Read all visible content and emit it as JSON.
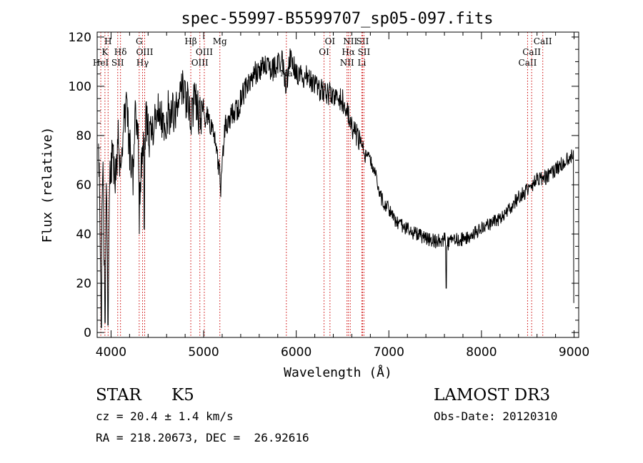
{
  "chart_data": {
    "type": "line",
    "title": "spec-55997-B5599707_sp05-097.fits",
    "xlabel": "Wavelength (Å)",
    "ylabel": "Flux (relative)",
    "xlim": [
      3850,
      9050
    ],
    "ylim": [
      -2,
      122
    ],
    "xticks": [
      4000,
      5000,
      6000,
      7000,
      8000,
      9000
    ],
    "yticks": [
      0,
      20,
      40,
      60,
      80,
      100,
      120
    ],
    "grid": false,
    "spectrum_color": "#000000",
    "line_marker_color": "#cc0000",
    "spectrum_anchors": [
      {
        "x": 3870,
        "y": 68
      },
      {
        "x": 3890,
        "y": 22
      },
      {
        "x": 3910,
        "y": 70
      },
      {
        "x": 3935,
        "y": 8
      },
      {
        "x": 3950,
        "y": 62
      },
      {
        "x": 3968,
        "y": 8
      },
      {
        "x": 3985,
        "y": 60
      },
      {
        "x": 4010,
        "y": 72
      },
      {
        "x": 4050,
        "y": 62
      },
      {
        "x": 4075,
        "y": 80
      },
      {
        "x": 4102,
        "y": 60
      },
      {
        "x": 4130,
        "y": 85
      },
      {
        "x": 4170,
        "y": 92
      },
      {
        "x": 4200,
        "y": 75
      },
      {
        "x": 4240,
        "y": 62
      },
      {
        "x": 4260,
        "y": 88
      },
      {
        "x": 4290,
        "y": 86
      },
      {
        "x": 4305,
        "y": 55
      },
      {
        "x": 4340,
        "y": 72
      },
      {
        "x": 4380,
        "y": 86
      },
      {
        "x": 4420,
        "y": 78
      },
      {
        "x": 4470,
        "y": 85
      },
      {
        "x": 4520,
        "y": 92
      },
      {
        "x": 4570,
        "y": 80
      },
      {
        "x": 4620,
        "y": 90
      },
      {
        "x": 4660,
        "y": 88
      },
      {
        "x": 4700,
        "y": 92
      },
      {
        "x": 4740,
        "y": 102
      },
      {
        "x": 4780,
        "y": 98
      },
      {
        "x": 4820,
        "y": 94
      },
      {
        "x": 4861,
        "y": 88
      },
      {
        "x": 4900,
        "y": 95
      },
      {
        "x": 4940,
        "y": 90
      },
      {
        "x": 4980,
        "y": 86
      },
      {
        "x": 5050,
        "y": 88
      },
      {
        "x": 5120,
        "y": 80
      },
      {
        "x": 5172,
        "y": 65
      },
      {
        "x": 5185,
        "y": 62
      },
      {
        "x": 5230,
        "y": 84
      },
      {
        "x": 5300,
        "y": 88
      },
      {
        "x": 5380,
        "y": 92
      },
      {
        "x": 5460,
        "y": 100
      },
      {
        "x": 5550,
        "y": 105
      },
      {
        "x": 5650,
        "y": 108
      },
      {
        "x": 5750,
        "y": 107
      },
      {
        "x": 5850,
        "y": 110
      },
      {
        "x": 5890,
        "y": 100
      },
      {
        "x": 5930,
        "y": 112
      },
      {
        "x": 6000,
        "y": 105
      },
      {
        "x": 6100,
        "y": 104
      },
      {
        "x": 6200,
        "y": 100
      },
      {
        "x": 6280,
        "y": 98
      },
      {
        "x": 6350,
        "y": 97
      },
      {
        "x": 6420,
        "y": 96
      },
      {
        "x": 6500,
        "y": 94
      },
      {
        "x": 6540,
        "y": 90
      },
      {
        "x": 6563,
        "y": 88
      },
      {
        "x": 6600,
        "y": 84
      },
      {
        "x": 6650,
        "y": 80
      },
      {
        "x": 6700,
        "y": 78
      },
      {
        "x": 6740,
        "y": 72
      },
      {
        "x": 6800,
        "y": 70
      },
      {
        "x": 6850,
        "y": 66
      },
      {
        "x": 6900,
        "y": 56
      },
      {
        "x": 6950,
        "y": 52
      },
      {
        "x": 7000,
        "y": 50
      },
      {
        "x": 7050,
        "y": 46
      },
      {
        "x": 7100,
        "y": 44
      },
      {
        "x": 7200,
        "y": 42
      },
      {
        "x": 7300,
        "y": 40
      },
      {
        "x": 7400,
        "y": 38
      },
      {
        "x": 7500,
        "y": 37
      },
      {
        "x": 7600,
        "y": 38
      },
      {
        "x": 7630,
        "y": 36
      },
      {
        "x": 7700,
        "y": 38
      },
      {
        "x": 7800,
        "y": 38
      },
      {
        "x": 7900,
        "y": 40
      },
      {
        "x": 8000,
        "y": 42
      },
      {
        "x": 8100,
        "y": 44
      },
      {
        "x": 8200,
        "y": 46
      },
      {
        "x": 8300,
        "y": 50
      },
      {
        "x": 8400,
        "y": 55
      },
      {
        "x": 8500,
        "y": 58
      },
      {
        "x": 8600,
        "y": 62
      },
      {
        "x": 8700,
        "y": 63
      },
      {
        "x": 8800,
        "y": 66
      },
      {
        "x": 8900,
        "y": 70
      },
      {
        "x": 8990,
        "y": 72
      }
    ],
    "spectrum_dips": [
      {
        "x": 3895,
        "y": 2
      },
      {
        "x": 3934,
        "y": 4
      },
      {
        "x": 3968,
        "y": 3
      },
      {
        "x": 4305,
        "y": 40
      },
      {
        "x": 4360,
        "y": 42
      },
      {
        "x": 5185,
        "y": 55
      },
      {
        "x": 7620,
        "y": 18
      },
      {
        "x": 8998,
        "y": 12
      }
    ],
    "spectral_lines": [
      {
        "x": 3889,
        "label": "HeI",
        "row": 3
      },
      {
        "x": 3934,
        "label": "K",
        "row": 2
      },
      {
        "x": 3968,
        "label": "H",
        "row": 1
      },
      {
        "x": 4072,
        "label": "SII",
        "row": 3
      },
      {
        "x": 4102,
        "label": "Hδ",
        "row": 2
      },
      {
        "x": 4304,
        "label": "G",
        "row": 1
      },
      {
        "x": 4340,
        "label": "Hγ",
        "row": 3
      },
      {
        "x": 4363,
        "label": "OIII",
        "row": 2
      },
      {
        "x": 4861,
        "label": "Hβ",
        "row": 1
      },
      {
        "x": 4959,
        "label": "OIII",
        "row": 3
      },
      {
        "x": 5007,
        "label": "OIII",
        "row": 2
      },
      {
        "x": 5175,
        "label": "Mg",
        "row": 1
      },
      {
        "x": 5893,
        "label": "Na",
        "row": 4
      },
      {
        "x": 6300,
        "label": "OI",
        "row": 2
      },
      {
        "x": 6364,
        "label": "OI",
        "row": 1
      },
      {
        "x": 6548,
        "label": "NII",
        "row": 3
      },
      {
        "x": 6563,
        "label": "Hα",
        "row": 2
      },
      {
        "x": 6583,
        "label": "NII",
        "row": 1
      },
      {
        "x": 6708,
        "label": "Li",
        "row": 3
      },
      {
        "x": 6716,
        "label": "SII",
        "row": 1
      },
      {
        "x": 6731,
        "label": "SII",
        "row": 2
      },
      {
        "x": 8498,
        "label": "CaII",
        "row": 3
      },
      {
        "x": 8542,
        "label": "CaII",
        "row": 2
      },
      {
        "x": 8662,
        "label": "CaII",
        "row": 1
      }
    ]
  },
  "info": {
    "object_class": "STAR",
    "subclass": "K5",
    "redshift_line": "cz = 20.4 ± 1.4 km/s",
    "coords_line": "RA = 218.20673, DEC =  26.92616",
    "survey": "LAMOST DR3",
    "obs_date_line": "Obs-Date: 20120310"
  }
}
